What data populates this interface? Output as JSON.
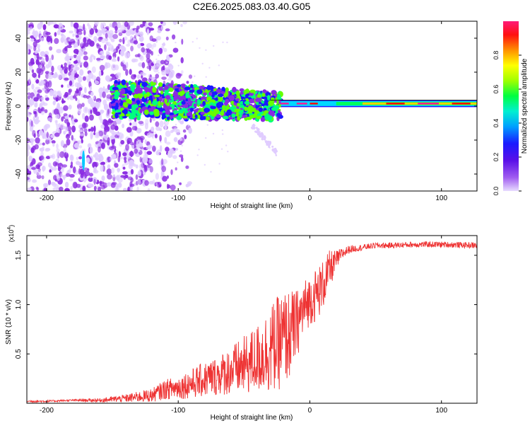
{
  "figure": {
    "title": "C2E6.2025.083.03.40.G05"
  },
  "chart_data": [
    {
      "type": "heatmap",
      "title": "C2E6.2025.083.03.40.G05",
      "xlabel": "Height of straight line (km)",
      "ylabel": "Frequency (Hz)",
      "xlim": [
        -215,
        127
      ],
      "ylim": [
        -50,
        50
      ],
      "xticks": [
        -200,
        -100,
        0,
        100
      ],
      "yticks": [
        -40,
        -20,
        0,
        20,
        40
      ],
      "colorbar": {
        "label": "Normalized spectral amplitude",
        "range": [
          0,
          1
        ],
        "ticks": [
          "0.0",
          "0.2",
          "0.4",
          "0.6",
          "0.8"
        ],
        "colors": [
          "#e0ccff",
          "#8a2be2",
          "#1a1aff",
          "#00c8ff",
          "#00ff80",
          "#66ff00",
          "#ffff00",
          "#ff8000",
          "#ff0000",
          "#ff1493"
        ]
      },
      "regions": [
        {
          "label": "scattered noise",
          "x_range": [
            -215,
            -125
          ],
          "freq_range": [
            -50,
            50
          ],
          "amplitude": 0.15
        },
        {
          "label": "broadened signal",
          "x_range": [
            -150,
            -22
          ],
          "freq_range": [
            -12,
            13
          ],
          "amplitude": 0.45
        },
        {
          "label": "sidelobe",
          "x_range": [
            -45,
            -25
          ],
          "freq_range": [
            -30,
            -10
          ],
          "amplitude": 0.05
        },
        {
          "label": "coherent tone",
          "x_range": [
            -22,
            127
          ],
          "freq_range": [
            -1,
            3
          ],
          "amplitude": 0.85
        }
      ]
    },
    {
      "type": "line",
      "title": "",
      "xlabel": "Height of straight line (km)",
      "ylabel": "SNR (10 * v/v)",
      "yscale_label": "(x10",
      "yscale_exponent": "4",
      "xlim": [
        -215,
        127
      ],
      "ylim": [
        0,
        1.7
      ],
      "xticks": [
        -200,
        -100,
        0,
        100
      ],
      "yticks": [
        "0.5",
        "1.0",
        "1.5"
      ],
      "series": [
        {
          "name": "SNR",
          "color": "#ee3333",
          "x": [
            -215,
            -200,
            -180,
            -160,
            -140,
            -120,
            -110,
            -100,
            -90,
            -80,
            -70,
            -60,
            -50,
            -40,
            -30,
            -20,
            -15,
            -10,
            -5,
            0,
            5,
            10,
            15,
            20,
            25,
            30,
            40,
            50,
            60,
            80,
            100,
            127
          ],
          "mean": [
            0.02,
            0.02,
            0.03,
            0.03,
            0.05,
            0.08,
            0.14,
            0.16,
            0.2,
            0.24,
            0.28,
            0.33,
            0.38,
            0.45,
            0.55,
            0.65,
            0.7,
            0.8,
            0.95,
            1.05,
            1.1,
            1.2,
            1.35,
            1.45,
            1.52,
            1.56,
            1.58,
            1.6,
            1.6,
            1.61,
            1.61,
            1.6
          ],
          "spread": [
            0.01,
            0.01,
            0.01,
            0.02,
            0.04,
            0.07,
            0.1,
            0.12,
            0.15,
            0.18,
            0.2,
            0.25,
            0.3,
            0.35,
            0.45,
            0.5,
            0.45,
            0.35,
            0.3,
            0.25,
            0.28,
            0.25,
            0.2,
            0.1,
            0.06,
            0.04,
            0.03,
            0.03,
            0.03,
            0.03,
            0.03,
            0.03
          ]
        }
      ]
    }
  ]
}
